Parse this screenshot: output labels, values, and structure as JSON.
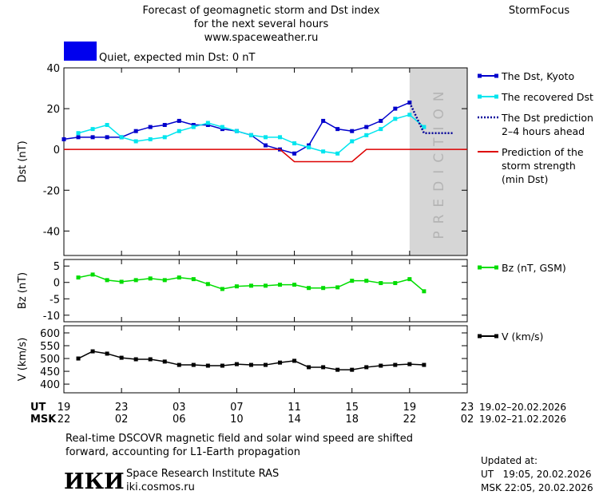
{
  "header": {
    "title_lines": [
      "Forecast of geomagnetic storm and Dst index",
      "for the next several hours",
      "www.spaceweather.ru"
    ],
    "brand": "StormFocus",
    "status": "Quiet, expected min Dst: 0 nT",
    "status_color": "#0000ee"
  },
  "chart_data": [
    {
      "type": "line",
      "ylabel": "Dst (nT)",
      "xlim": [
        0,
        28
      ],
      "ylim": [
        -52,
        40
      ],
      "yticks": [
        -40,
        -20,
        0,
        20,
        40
      ],
      "prediction_region": [
        24,
        28
      ],
      "prediction_label": "PREDICTION",
      "series": [
        {
          "name": "The Dst, Kyoto",
          "color": "#0000cc",
          "marker": "square",
          "dash": "solid",
          "x": [
            0,
            1,
            2,
            3,
            4,
            5,
            6,
            7,
            8,
            9,
            10,
            11,
            12,
            13,
            14,
            15,
            16,
            17,
            18,
            19,
            20,
            21,
            22,
            23,
            24
          ],
          "values": [
            5,
            6,
            6,
            6,
            6,
            9,
            11,
            12,
            14,
            12,
            12,
            10,
            9,
            7,
            2,
            0,
            -2,
            2,
            14,
            10,
            9,
            11,
            14,
            20,
            23
          ]
        },
        {
          "name": "The recovered Dst",
          "color": "#00e5ee",
          "marker": "square",
          "dash": "solid",
          "x": [
            1,
            2,
            3,
            4,
            5,
            6,
            7,
            8,
            9,
            10,
            11,
            12,
            13,
            14,
            15,
            16,
            17,
            18,
            19,
            20,
            21,
            22,
            23,
            24,
            25
          ],
          "values": [
            8,
            10,
            12,
            6,
            4,
            5,
            6,
            9,
            11,
            13,
            11,
            9,
            7,
            6,
            6,
            3,
            1,
            -1,
            -2,
            4,
            7,
            10,
            15,
            17,
            11
          ]
        },
        {
          "name": "The Dst prediction\n2–4 hours ahead",
          "color": "#000099",
          "marker": "none",
          "dash": "dotted",
          "x": [
            24,
            25,
            26,
            27
          ],
          "values": [
            23,
            8,
            8,
            8
          ]
        },
        {
          "name": "Prediction of the\nstorm strength\n(min Dst)",
          "color": "#dd0000",
          "marker": "none",
          "dash": "solid",
          "x": [
            0,
            15,
            16,
            20,
            21,
            28
          ],
          "values": [
            0,
            0,
            -6,
            -6,
            0,
            0
          ]
        }
      ]
    },
    {
      "type": "line",
      "ylabel": "Bz (nT)",
      "xlim": [
        0,
        28
      ],
      "ylim": [
        -12,
        7
      ],
      "yticks": [
        -10,
        -5,
        0,
        5
      ],
      "series": [
        {
          "name": "Bz (nT, GSM)",
          "color": "#00dd00",
          "marker": "square",
          "dash": "solid",
          "x": [
            1,
            2,
            3,
            4,
            5,
            6,
            7,
            8,
            9,
            10,
            11,
            12,
            13,
            14,
            15,
            16,
            17,
            18,
            19,
            20,
            21,
            22,
            23,
            24,
            25
          ],
          "values": [
            1.5,
            2.4,
            0.7,
            0.2,
            0.7,
            1.2,
            0.7,
            1.5,
            1,
            -0.5,
            -2,
            -1.2,
            -1,
            -1,
            -0.7,
            -0.7,
            -1.7,
            -1.7,
            -1.5,
            0.5,
            0.5,
            -0.2,
            -0.2,
            1,
            -2.7
          ]
        }
      ]
    },
    {
      "type": "line",
      "ylabel": "V (km/s)",
      "xlim": [
        0,
        28
      ],
      "ylim": [
        366,
        628
      ],
      "yticks": [
        400,
        450,
        500,
        550,
        600
      ],
      "xlabel": "UT",
      "xlabel_msk": "MSK",
      "date_range": "19.02–20.02.2026",
      "date_range_msk": "19.02–21.02.2026",
      "xticks": [
        {
          "value": 0,
          "label": "19"
        },
        {
          "value": 4,
          "label": "23"
        },
        {
          "value": 8,
          "label": "03"
        },
        {
          "value": 12,
          "label": "07"
        },
        {
          "value": 16,
          "label": "11"
        },
        {
          "value": 20,
          "label": "15"
        },
        {
          "value": 24,
          "label": "19"
        },
        {
          "value": 28,
          "label": "23"
        }
      ],
      "xticks_msk": [
        {
          "value": 0,
          "label": "22"
        },
        {
          "value": 4,
          "label": "02"
        },
        {
          "value": 8,
          "label": "06"
        },
        {
          "value": 12,
          "label": "10"
        },
        {
          "value": 16,
          "label": "14"
        },
        {
          "value": 20,
          "label": "18"
        },
        {
          "value": 24,
          "label": "22"
        },
        {
          "value": 28,
          "label": "02"
        }
      ],
      "series": [
        {
          "name": "V (km/s)",
          "color": "#000000",
          "marker": "square",
          "dash": "solid",
          "x": [
            1,
            2,
            3,
            4,
            5,
            6,
            7,
            8,
            9,
            10,
            11,
            12,
            13,
            14,
            15,
            16,
            17,
            18,
            19,
            20,
            21,
            22,
            23,
            24,
            25
          ],
          "values": [
            500,
            528,
            519,
            503,
            497,
            497,
            488,
            475,
            475,
            472,
            472,
            478,
            475,
            475,
            484,
            491,
            466,
            466,
            456,
            456,
            466,
            472,
            475,
            478,
            475
          ]
        }
      ]
    }
  ],
  "footer": {
    "note_lines": [
      "Real-time DSCOVR magnetic field and solar wind speed are shifted",
      "forward, accounting for L1-Earth propagation"
    ],
    "logo": "ИКИ",
    "institute": "Space Research Institute RAS",
    "url": "iki.cosmos.ru",
    "updated_lines": [
      "Updated at:",
      "UT   19:05, 20.02.2026",
      "MSK 22:05, 20.02.2026"
    ]
  }
}
